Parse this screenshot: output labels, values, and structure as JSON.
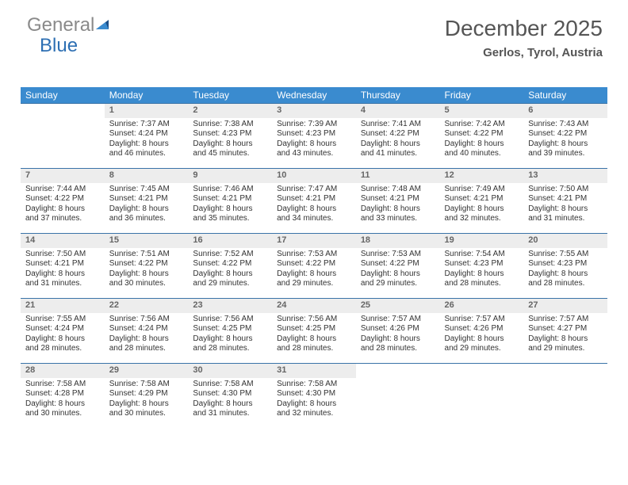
{
  "logo": {
    "part1": "General",
    "part2": "Blue"
  },
  "title": "December 2025",
  "subtitle": "Gerlos, Tyrol, Austria",
  "weekdays": [
    "Sunday",
    "Monday",
    "Tuesday",
    "Wednesday",
    "Thursday",
    "Friday",
    "Saturday"
  ],
  "colors": {
    "header_bg": "#3a8bcf",
    "header_text": "#ffffff",
    "row_border": "#3a73a8",
    "daynum_bg": "#ededed",
    "daynum_text": "#666666",
    "body_text": "#333333",
    "title_text": "#555555",
    "logo_gray": "#8a8a8a",
    "logo_blue": "#2d6fb3",
    "logo_tri_top": "#1b4f88",
    "logo_tri_bottom": "#3a8bcf"
  },
  "typography": {
    "title_fontsize": 28,
    "subtitle_fontsize": 15,
    "header_fontsize": 12,
    "cell_fontsize": 10,
    "daynum_fontsize": 11,
    "logo_fontsize": 24,
    "font_family": "Arial"
  },
  "layout": {
    "first_weekday_index": 1,
    "days_in_month": 31,
    "rows": 5,
    "cols": 7
  },
  "days": [
    {
      "n": 1,
      "sunrise": "7:37 AM",
      "sunset": "4:24 PM",
      "daylight": "8 hours and 46 minutes."
    },
    {
      "n": 2,
      "sunrise": "7:38 AM",
      "sunset": "4:23 PM",
      "daylight": "8 hours and 45 minutes."
    },
    {
      "n": 3,
      "sunrise": "7:39 AM",
      "sunset": "4:23 PM",
      "daylight": "8 hours and 43 minutes."
    },
    {
      "n": 4,
      "sunrise": "7:41 AM",
      "sunset": "4:22 PM",
      "daylight": "8 hours and 41 minutes."
    },
    {
      "n": 5,
      "sunrise": "7:42 AM",
      "sunset": "4:22 PM",
      "daylight": "8 hours and 40 minutes."
    },
    {
      "n": 6,
      "sunrise": "7:43 AM",
      "sunset": "4:22 PM",
      "daylight": "8 hours and 39 minutes."
    },
    {
      "n": 7,
      "sunrise": "7:44 AM",
      "sunset": "4:22 PM",
      "daylight": "8 hours and 37 minutes."
    },
    {
      "n": 8,
      "sunrise": "7:45 AM",
      "sunset": "4:21 PM",
      "daylight": "8 hours and 36 minutes."
    },
    {
      "n": 9,
      "sunrise": "7:46 AM",
      "sunset": "4:21 PM",
      "daylight": "8 hours and 35 minutes."
    },
    {
      "n": 10,
      "sunrise": "7:47 AM",
      "sunset": "4:21 PM",
      "daylight": "8 hours and 34 minutes."
    },
    {
      "n": 11,
      "sunrise": "7:48 AM",
      "sunset": "4:21 PM",
      "daylight": "8 hours and 33 minutes."
    },
    {
      "n": 12,
      "sunrise": "7:49 AM",
      "sunset": "4:21 PM",
      "daylight": "8 hours and 32 minutes."
    },
    {
      "n": 13,
      "sunrise": "7:50 AM",
      "sunset": "4:21 PM",
      "daylight": "8 hours and 31 minutes."
    },
    {
      "n": 14,
      "sunrise": "7:50 AM",
      "sunset": "4:21 PM",
      "daylight": "8 hours and 31 minutes."
    },
    {
      "n": 15,
      "sunrise": "7:51 AM",
      "sunset": "4:22 PM",
      "daylight": "8 hours and 30 minutes."
    },
    {
      "n": 16,
      "sunrise": "7:52 AM",
      "sunset": "4:22 PM",
      "daylight": "8 hours and 29 minutes."
    },
    {
      "n": 17,
      "sunrise": "7:53 AM",
      "sunset": "4:22 PM",
      "daylight": "8 hours and 29 minutes."
    },
    {
      "n": 18,
      "sunrise": "7:53 AM",
      "sunset": "4:22 PM",
      "daylight": "8 hours and 29 minutes."
    },
    {
      "n": 19,
      "sunrise": "7:54 AM",
      "sunset": "4:23 PM",
      "daylight": "8 hours and 28 minutes."
    },
    {
      "n": 20,
      "sunrise": "7:55 AM",
      "sunset": "4:23 PM",
      "daylight": "8 hours and 28 minutes."
    },
    {
      "n": 21,
      "sunrise": "7:55 AM",
      "sunset": "4:24 PM",
      "daylight": "8 hours and 28 minutes."
    },
    {
      "n": 22,
      "sunrise": "7:56 AM",
      "sunset": "4:24 PM",
      "daylight": "8 hours and 28 minutes."
    },
    {
      "n": 23,
      "sunrise": "7:56 AM",
      "sunset": "4:25 PM",
      "daylight": "8 hours and 28 minutes."
    },
    {
      "n": 24,
      "sunrise": "7:56 AM",
      "sunset": "4:25 PM",
      "daylight": "8 hours and 28 minutes."
    },
    {
      "n": 25,
      "sunrise": "7:57 AM",
      "sunset": "4:26 PM",
      "daylight": "8 hours and 28 minutes."
    },
    {
      "n": 26,
      "sunrise": "7:57 AM",
      "sunset": "4:26 PM",
      "daylight": "8 hours and 29 minutes."
    },
    {
      "n": 27,
      "sunrise": "7:57 AM",
      "sunset": "4:27 PM",
      "daylight": "8 hours and 29 minutes."
    },
    {
      "n": 28,
      "sunrise": "7:58 AM",
      "sunset": "4:28 PM",
      "daylight": "8 hours and 30 minutes."
    },
    {
      "n": 29,
      "sunrise": "7:58 AM",
      "sunset": "4:29 PM",
      "daylight": "8 hours and 30 minutes."
    },
    {
      "n": 30,
      "sunrise": "7:58 AM",
      "sunset": "4:30 PM",
      "daylight": "8 hours and 31 minutes."
    },
    {
      "n": 31,
      "sunrise": "7:58 AM",
      "sunset": "4:30 PM",
      "daylight": "8 hours and 32 minutes."
    }
  ],
  "labels": {
    "sunrise_prefix": "Sunrise: ",
    "sunset_prefix": "Sunset: ",
    "daylight_prefix": "Daylight: "
  }
}
